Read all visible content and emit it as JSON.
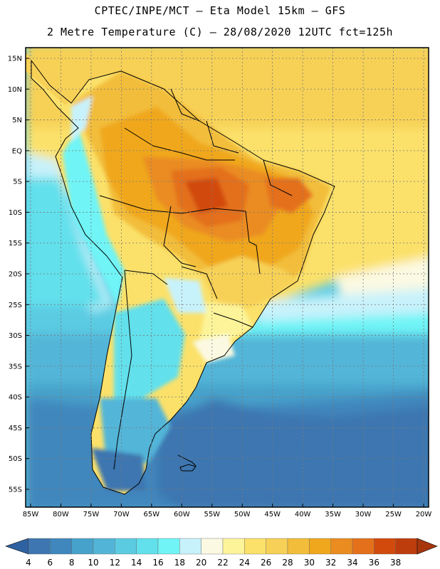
{
  "header": {
    "line1": "CPTEC/INPE/MCT –  Eta Model 15km – GFS",
    "line2": "2 Metre Temperature (C) – 28/08/2020 12UTC fct=125h"
  },
  "map": {
    "lon_range": [
      -85,
      -20
    ],
    "lat_range": [
      -58,
      17
    ],
    "lat_ticks": [
      {
        "value": 15,
        "label": "15N"
      },
      {
        "value": 10,
        "label": "10N"
      },
      {
        "value": 5,
        "label": "5N"
      },
      {
        "value": 0,
        "label": "EQ"
      },
      {
        "value": -5,
        "label": "5S"
      },
      {
        "value": -10,
        "label": "10S"
      },
      {
        "value": -15,
        "label": "15S"
      },
      {
        "value": -20,
        "label": "20S"
      },
      {
        "value": -25,
        "label": "25S"
      },
      {
        "value": -30,
        "label": "30S"
      },
      {
        "value": -35,
        "label": "35S"
      },
      {
        "value": -40,
        "label": "40S"
      },
      {
        "value": -45,
        "label": "45S"
      },
      {
        "value": -50,
        "label": "50S"
      },
      {
        "value": -55,
        "label": "55S"
      }
    ],
    "lon_ticks": [
      {
        "value": -85,
        "label": "85W"
      },
      {
        "value": -80,
        "label": "80W"
      },
      {
        "value": -75,
        "label": "75W"
      },
      {
        "value": -70,
        "label": "70W"
      },
      {
        "value": -65,
        "label": "65W"
      },
      {
        "value": -60,
        "label": "60W"
      },
      {
        "value": -55,
        "label": "55W"
      },
      {
        "value": -50,
        "label": "50W"
      },
      {
        "value": -45,
        "label": "45W"
      },
      {
        "value": -40,
        "label": "40W"
      },
      {
        "value": -35,
        "label": "35W"
      },
      {
        "value": -30,
        "label": "30W"
      },
      {
        "value": -25,
        "label": "25W"
      },
      {
        "value": -20,
        "label": "20W"
      }
    ]
  },
  "colorbar": {
    "levels": [
      "4",
      "6",
      "8",
      "10",
      "12",
      "14",
      "16",
      "18",
      "20",
      "22",
      "24",
      "26",
      "28",
      "30",
      "32",
      "34",
      "36",
      "38"
    ],
    "colors": [
      "#3d76b0",
      "#3f87bd",
      "#47a2cb",
      "#52b5d8",
      "#5bcbe2",
      "#62e0ec",
      "#70f4f6",
      "#c8f2fb",
      "#fbf9e2",
      "#fdf49a",
      "#fbe16a",
      "#f7d157",
      "#f2bd3a",
      "#f0a71d",
      "#ea8c20",
      "#e4701c",
      "#d24a0c",
      "#bd3d0c"
    ],
    "low_color": "#2f62a2",
    "high_color": "#a8360c"
  }
}
